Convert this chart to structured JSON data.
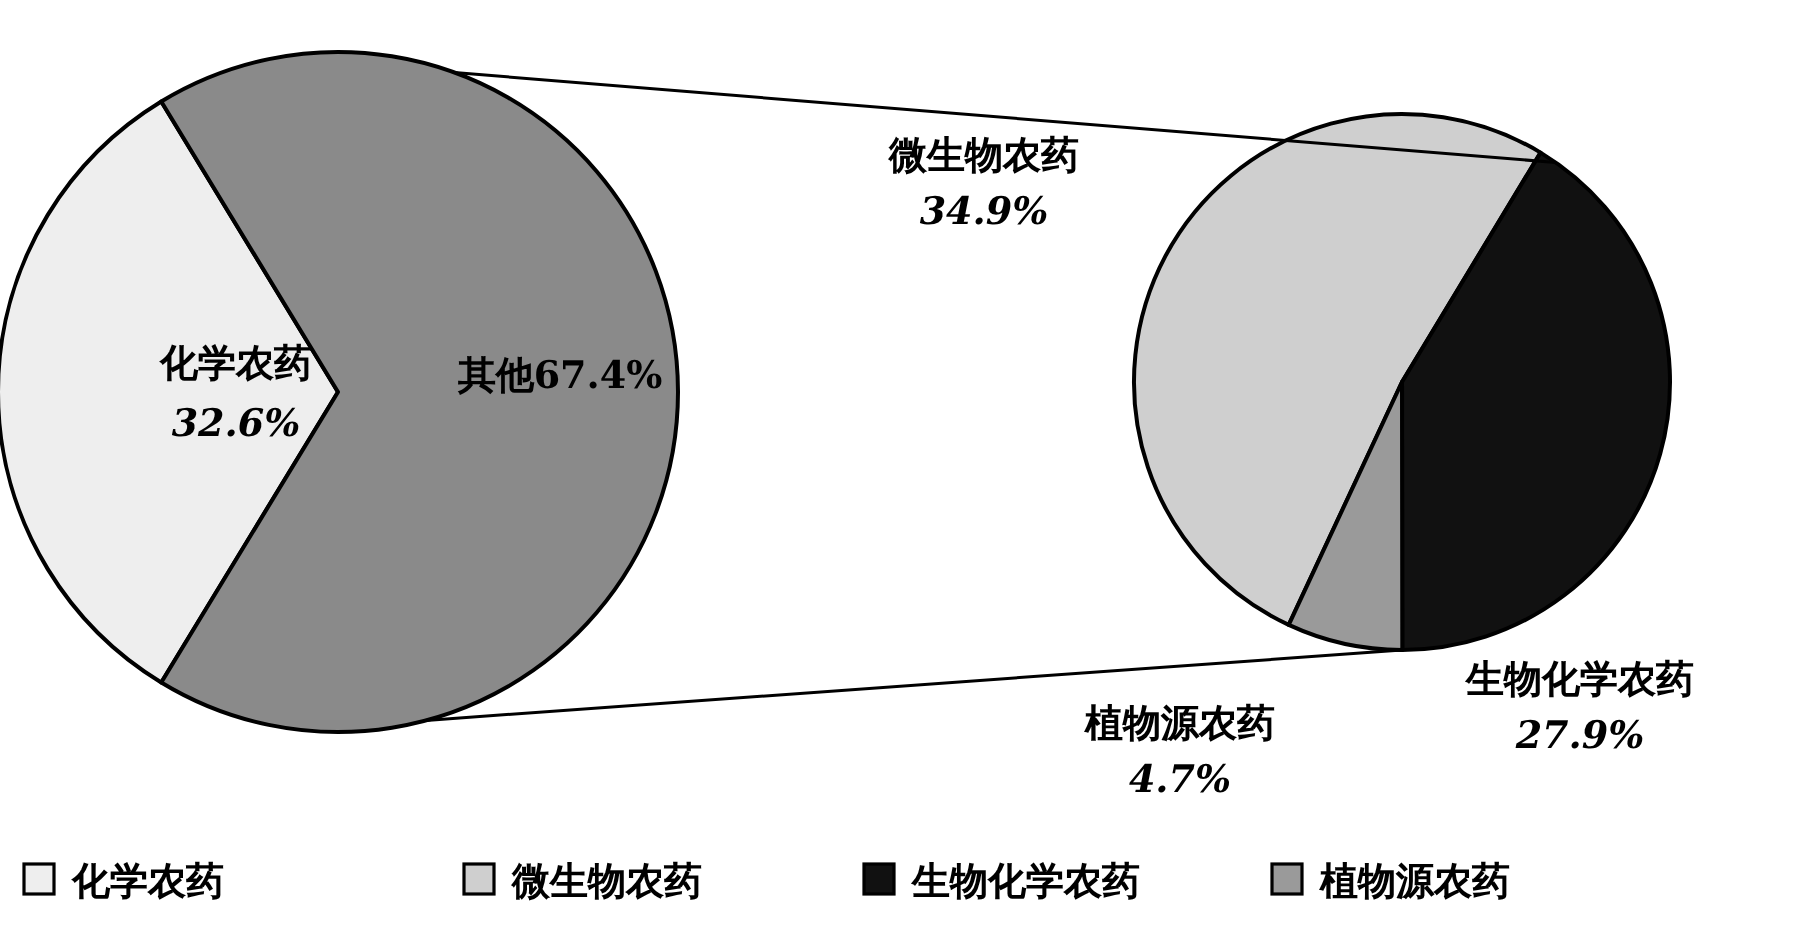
{
  "chart_data": [
    {
      "type": "pie",
      "categories": [
        "化学农药",
        "其他"
      ],
      "values": [
        32.6,
        67.4
      ],
      "value_labels": [
        "32.6%",
        "67.4%"
      ],
      "colors": [
        "#eeeeee",
        "#8a8a8a"
      ],
      "legend": "bottom"
    },
    {
      "type": "pie",
      "categories": [
        "微生物农药",
        "生物化学农药",
        "植物源农药"
      ],
      "values": [
        34.9,
        27.9,
        4.7
      ],
      "value_labels": [
        "34.9%",
        "27.9%",
        "4.7%"
      ],
      "colors": [
        "#cfcfcf",
        "#111111",
        "#9a9a9a"
      ],
      "legend": "bottom"
    }
  ]
}
